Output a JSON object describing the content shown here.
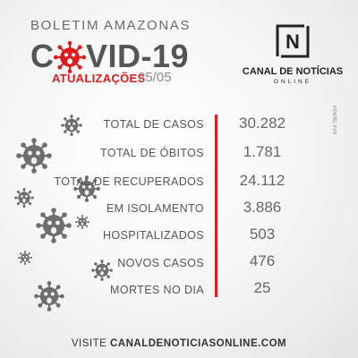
{
  "header": {
    "subtitle": "BOLETIM AMAZONAS",
    "headline_left": "C",
    "headline_right": "VID-19",
    "updates_label": "ATUALIZAÇÕES",
    "update_date": "25/05"
  },
  "brand": {
    "logo_letter": "N",
    "name": "CANAL DE NOTÍCIAS",
    "tagline": "ONLINE",
    "source_credit": "FONTE: FVS"
  },
  "stats": [
    {
      "label": "TOTAL DE CASOS",
      "value": "30.282"
    },
    {
      "label": "TOTAL DE ÓBITOS",
      "value": "1.781"
    },
    {
      "label": "TOTAL DE RECUPERADOS",
      "value": "24.112"
    },
    {
      "label": "EM ISOLAMENTO",
      "value": "3.886"
    },
    {
      "label": "HOSPITALIZADOS",
      "value": "503"
    },
    {
      "label": "NOVOS CASOS",
      "value": "476"
    },
    {
      "label": "MORTES NO DIA",
      "value": "25"
    }
  ],
  "footer": {
    "prefix": "VISITE",
    "url": "CANALDENOTICIASONLINE.COM"
  },
  "colors": {
    "accent": "#e01b1b",
    "text": "#555555",
    "virus": "#6e6e6e"
  },
  "icons": [
    "coronavirus-icon",
    "logo-n-icon"
  ]
}
